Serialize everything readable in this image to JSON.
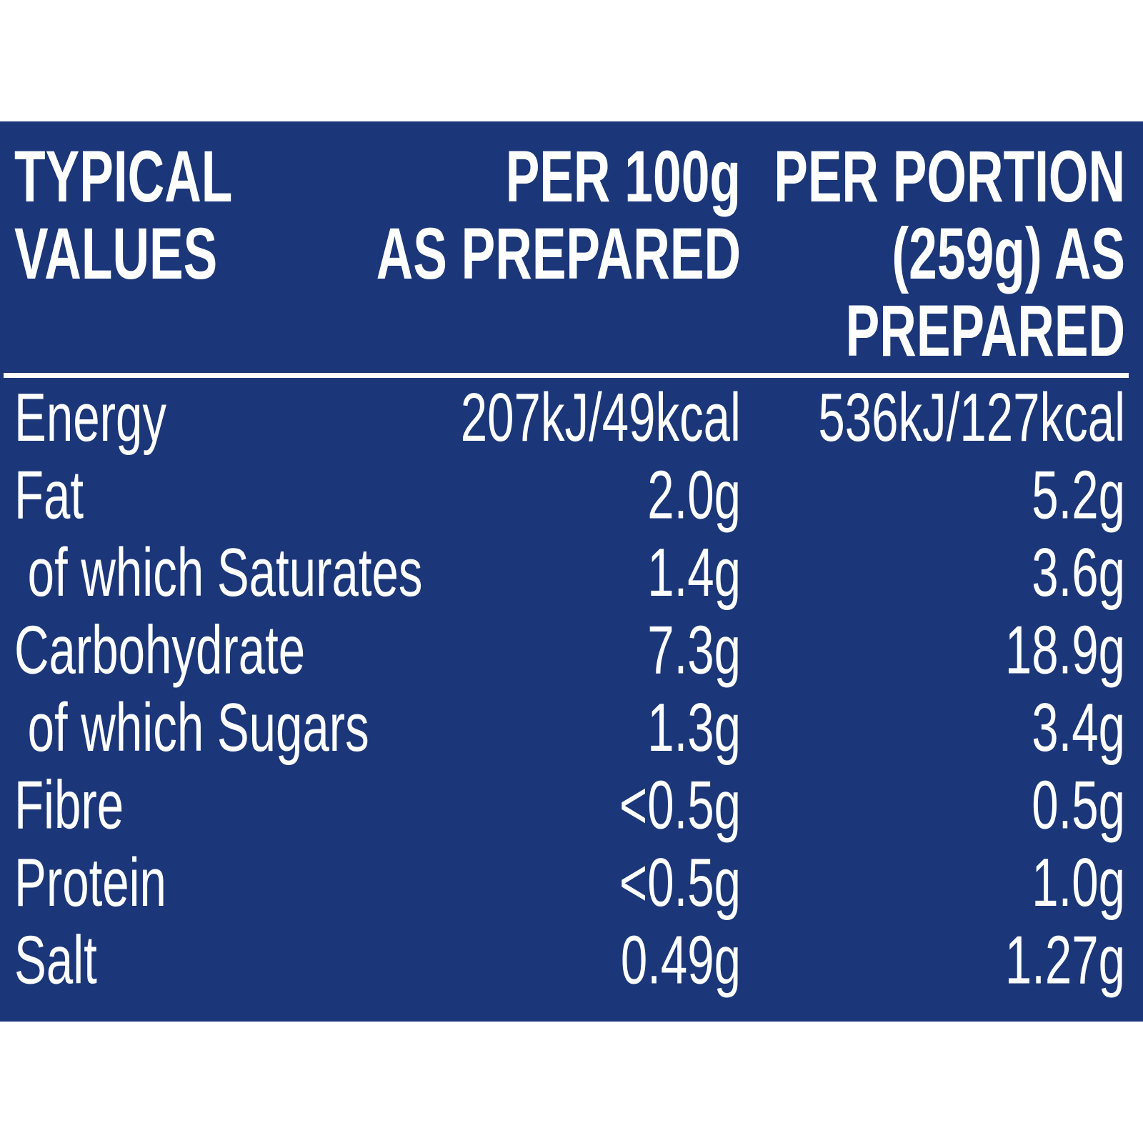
{
  "table": {
    "header": [
      [
        "TYPICAL",
        "VALUES"
      ],
      [
        "PER 100g",
        "AS PREPARED"
      ],
      [
        "PER PORTION",
        "(259g) AS",
        "PREPARED"
      ]
    ],
    "rows": [
      [
        "Energy",
        "207kJ/49kcal",
        "536kJ/127kcal"
      ],
      [
        "Fat",
        "2.0g",
        "5.2g"
      ],
      [
        " of which Saturates",
        "1.4g",
        "3.6g"
      ],
      [
        "Carbohydrate",
        "7.3g",
        "18.9g"
      ],
      [
        " of which Sugars",
        "1.3g",
        "3.4g"
      ],
      [
        "Fibre",
        "<0.5g",
        "0.5g"
      ],
      [
        "Protein",
        "<0.5g",
        "1.0g"
      ],
      [
        "Salt",
        "0.49g",
        "1.27g"
      ]
    ]
  }
}
